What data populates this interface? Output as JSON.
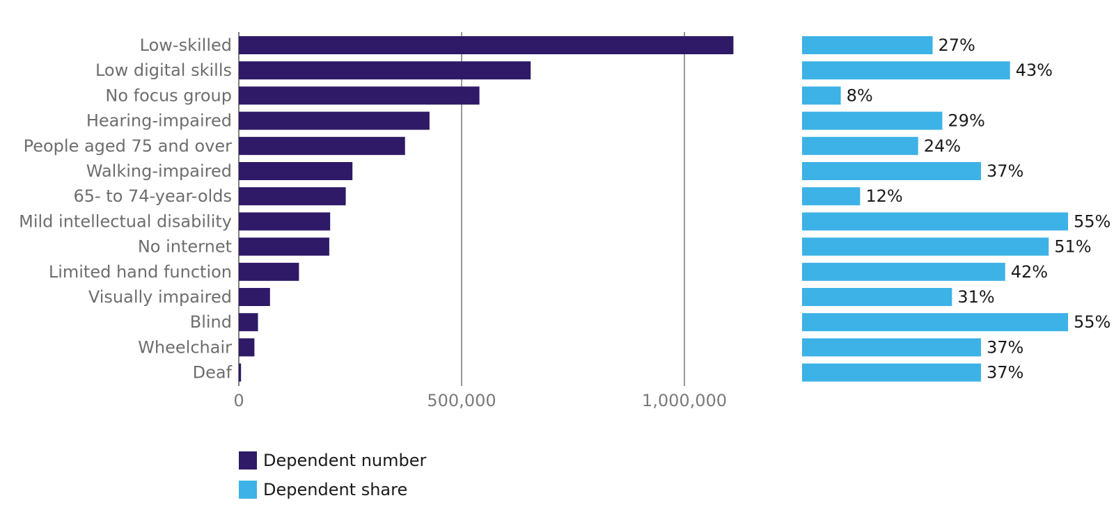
{
  "chart_data": {
    "type": "bar",
    "orientation": "horizontal",
    "categories": [
      "Low-skilled",
      "Low digital skills",
      "No focus group",
      "Hearing-impaired",
      "People aged 75 and over",
      "Walking-impaired",
      "65- to 74-year-olds",
      "Mild intellectual disability",
      "No internet",
      "Limited hand function",
      "Visually impaired",
      "Blind",
      "Wheelchair",
      "Deaf"
    ],
    "series": [
      {
        "name": "Dependent number",
        "color": "#2e1a66",
        "values": [
          1110000,
          655000,
          540000,
          428000,
          373000,
          255000,
          240000,
          205000,
          203000,
          135000,
          70000,
          43000,
          35000,
          5000
        ]
      },
      {
        "name": "Dependent share",
        "color": "#3db2e6",
        "unit": "%",
        "values": [
          27,
          43,
          8,
          29,
          24,
          37,
          12,
          55,
          51,
          42,
          31,
          55,
          37,
          37
        ],
        "labels": [
          "27%",
          "43%",
          "8%",
          "29%",
          "24%",
          "37%",
          "12%",
          "55%",
          "51%",
          "42%",
          "31%",
          "55%",
          "37%",
          "37%"
        ]
      }
    ],
    "number_axis": {
      "xlim": [
        0,
        1100000
      ],
      "ticks": [
        0,
        500000,
        1000000
      ],
      "tick_labels": [
        "0",
        "500,000",
        "1,000,000"
      ],
      "gridlines": true
    },
    "share_axis": {
      "xlim": [
        0,
        55
      ],
      "visible": false
    },
    "legend": {
      "placement": "bottom-left",
      "entries": [
        "Dependent number",
        "Dependent share"
      ]
    },
    "title": "",
    "xlabel": "",
    "ylabel": ""
  }
}
